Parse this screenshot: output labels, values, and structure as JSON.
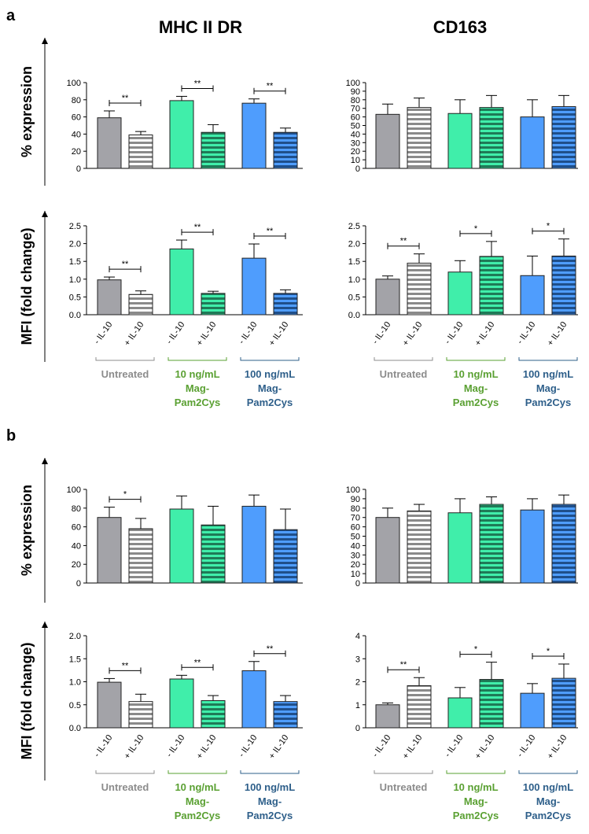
{
  "panel_labels": [
    "a",
    "b"
  ],
  "column_titles": [
    "MHC II DR",
    "CD163"
  ],
  "ylabels": {
    "expression": "% expression",
    "mfi": "MFI (fold change)"
  },
  "tick_labels": [
    "- IL-10",
    "+ IL-10"
  ],
  "groups": [
    {
      "lines": [
        "Untreated"
      ],
      "color": "#8c8c8c"
    },
    {
      "lines": [
        "10 ng/mL",
        "Mag-",
        "Pam2Cys"
      ],
      "color": "#5aa032"
    },
    {
      "lines": [
        "100 ng/mL",
        "Mag-",
        "Pam2Cys"
      ],
      "color": "#2e5f8a"
    }
  ],
  "colors": {
    "untreated": "#a3a3a8",
    "mag10": "#40eeaa",
    "mag100": "#4f9dfd"
  },
  "chart_data": [
    {
      "type": "bar",
      "panel": "a",
      "marker": "MHC II DR",
      "measure": "% expression",
      "categories": [
        "- IL-10",
        "+ IL-10",
        "- IL-10",
        "+ IL-10",
        "- IL-10",
        "+ IL-10"
      ],
      "values": [
        59,
        39,
        79,
        42,
        76,
        42
      ],
      "errors": [
        8,
        4,
        5,
        9,
        5,
        5
      ],
      "ylim": [
        0,
        100
      ],
      "yticks": [
        0,
        20,
        40,
        60,
        80,
        100
      ],
      "significance": [
        {
          "label": "**",
          "pair": [
            0,
            1
          ]
        },
        {
          "label": "**",
          "pair": [
            2,
            3
          ]
        },
        {
          "label": "**",
          "pair": [
            4,
            5
          ]
        }
      ]
    },
    {
      "type": "bar",
      "panel": "a",
      "marker": "CD163",
      "measure": "% expression",
      "categories": [
        "- IL-10",
        "+ IL-10",
        "- IL-10",
        "+ IL-10",
        "- IL-10",
        "+ IL-10"
      ],
      "values": [
        63,
        71,
        64,
        71,
        60,
        72
      ],
      "errors": [
        12,
        11,
        16,
        14,
        20,
        13
      ],
      "ylim": [
        0,
        100
      ],
      "yticks": [
        0,
        10,
        20,
        30,
        40,
        50,
        60,
        70,
        80,
        90,
        100
      ],
      "significance": []
    },
    {
      "type": "bar",
      "panel": "a",
      "marker": "MHC II DR",
      "measure": "MFI (fold change)",
      "categories": [
        "- IL-10",
        "+ IL-10",
        "- IL-10",
        "+ IL-10",
        "- IL-10",
        "+ IL-10"
      ],
      "values": [
        0.98,
        0.57,
        1.85,
        0.6,
        1.59,
        0.6
      ],
      "errors": [
        0.08,
        0.1,
        0.25,
        0.06,
        0.4,
        0.1
      ],
      "ylim": [
        0,
        2.5
      ],
      "yticks": [
        0.0,
        0.5,
        1.0,
        1.5,
        2.0,
        2.5
      ],
      "significance": [
        {
          "label": "**",
          "pair": [
            0,
            1
          ]
        },
        {
          "label": "**",
          "pair": [
            2,
            3
          ]
        },
        {
          "label": "**",
          "pair": [
            4,
            5
          ]
        }
      ]
    },
    {
      "type": "bar",
      "panel": "a",
      "marker": "CD163",
      "measure": "MFI (fold change)",
      "categories": [
        "- IL-10",
        "+ IL-10",
        "- IL-10",
        "+ IL-10",
        "- IL-10",
        "+ IL-10"
      ],
      "values": [
        1.0,
        1.45,
        1.2,
        1.64,
        1.1,
        1.65
      ],
      "errors": [
        0.09,
        0.26,
        0.32,
        0.42,
        0.55,
        0.48
      ],
      "ylim": [
        0,
        2.5
      ],
      "yticks": [
        0.0,
        0.5,
        1.0,
        1.5,
        2.0,
        2.5
      ],
      "significance": [
        {
          "label": "**",
          "pair": [
            0,
            1
          ]
        },
        {
          "label": "*",
          "pair": [
            2,
            3
          ]
        },
        {
          "label": "*",
          "pair": [
            4,
            5
          ]
        }
      ]
    },
    {
      "type": "bar",
      "panel": "b",
      "marker": "MHC II DR",
      "measure": "% expression",
      "categories": [
        "- IL-10",
        "+ IL-10",
        "- IL-10",
        "+ IL-10",
        "- IL-10",
        "+ IL-10"
      ],
      "values": [
        70,
        58,
        79,
        62,
        82,
        57
      ],
      "errors": [
        11,
        11,
        14,
        20,
        12,
        22
      ],
      "ylim": [
        0,
        100
      ],
      "yticks": [
        0,
        20,
        40,
        60,
        80,
        100
      ],
      "significance": [
        {
          "label": "*",
          "pair": [
            0,
            1
          ]
        }
      ]
    },
    {
      "type": "bar",
      "panel": "b",
      "marker": "CD163",
      "measure": "% expression",
      "categories": [
        "- IL-10",
        "+ IL-10",
        "- IL-10",
        "+ IL-10",
        "- IL-10",
        "+ IL-10"
      ],
      "values": [
        70,
        77,
        75,
        84,
        78,
        84
      ],
      "errors": [
        10,
        7,
        15,
        8,
        12,
        10
      ],
      "ylim": [
        0,
        100
      ],
      "yticks": [
        0,
        10,
        20,
        30,
        40,
        50,
        60,
        70,
        80,
        90,
        100
      ],
      "significance": []
    },
    {
      "type": "bar",
      "panel": "b",
      "marker": "MHC II DR",
      "measure": "MFI (fold change)",
      "categories": [
        "- IL-10",
        "+ IL-10",
        "- IL-10",
        "+ IL-10",
        "- IL-10",
        "+ IL-10"
      ],
      "values": [
        0.99,
        0.57,
        1.06,
        0.59,
        1.24,
        0.57
      ],
      "errors": [
        0.08,
        0.16,
        0.08,
        0.11,
        0.2,
        0.13
      ],
      "ylim": [
        0,
        2.0
      ],
      "yticks": [
        0.0,
        0.5,
        1.0,
        1.5,
        2.0
      ],
      "significance": [
        {
          "label": "**",
          "pair": [
            0,
            1
          ]
        },
        {
          "label": "**",
          "pair": [
            2,
            3
          ]
        },
        {
          "label": "**",
          "pair": [
            4,
            5
          ]
        }
      ]
    },
    {
      "type": "bar",
      "panel": "b",
      "marker": "CD163",
      "measure": "MFI (fold change)",
      "categories": [
        "- IL-10",
        "+ IL-10",
        "- IL-10",
        "+ IL-10",
        "- IL-10",
        "+ IL-10"
      ],
      "values": [
        1.0,
        1.83,
        1.3,
        2.1,
        1.5,
        2.15
      ],
      "errors": [
        0.08,
        0.35,
        0.45,
        0.75,
        0.42,
        0.62
      ],
      "ylim": [
        0,
        4
      ],
      "yticks": [
        0,
        1,
        2,
        3,
        4
      ],
      "significance": [
        {
          "label": "**",
          "pair": [
            0,
            1
          ]
        },
        {
          "label": "*",
          "pair": [
            2,
            3
          ]
        },
        {
          "label": "*",
          "pair": [
            4,
            5
          ]
        }
      ]
    }
  ]
}
